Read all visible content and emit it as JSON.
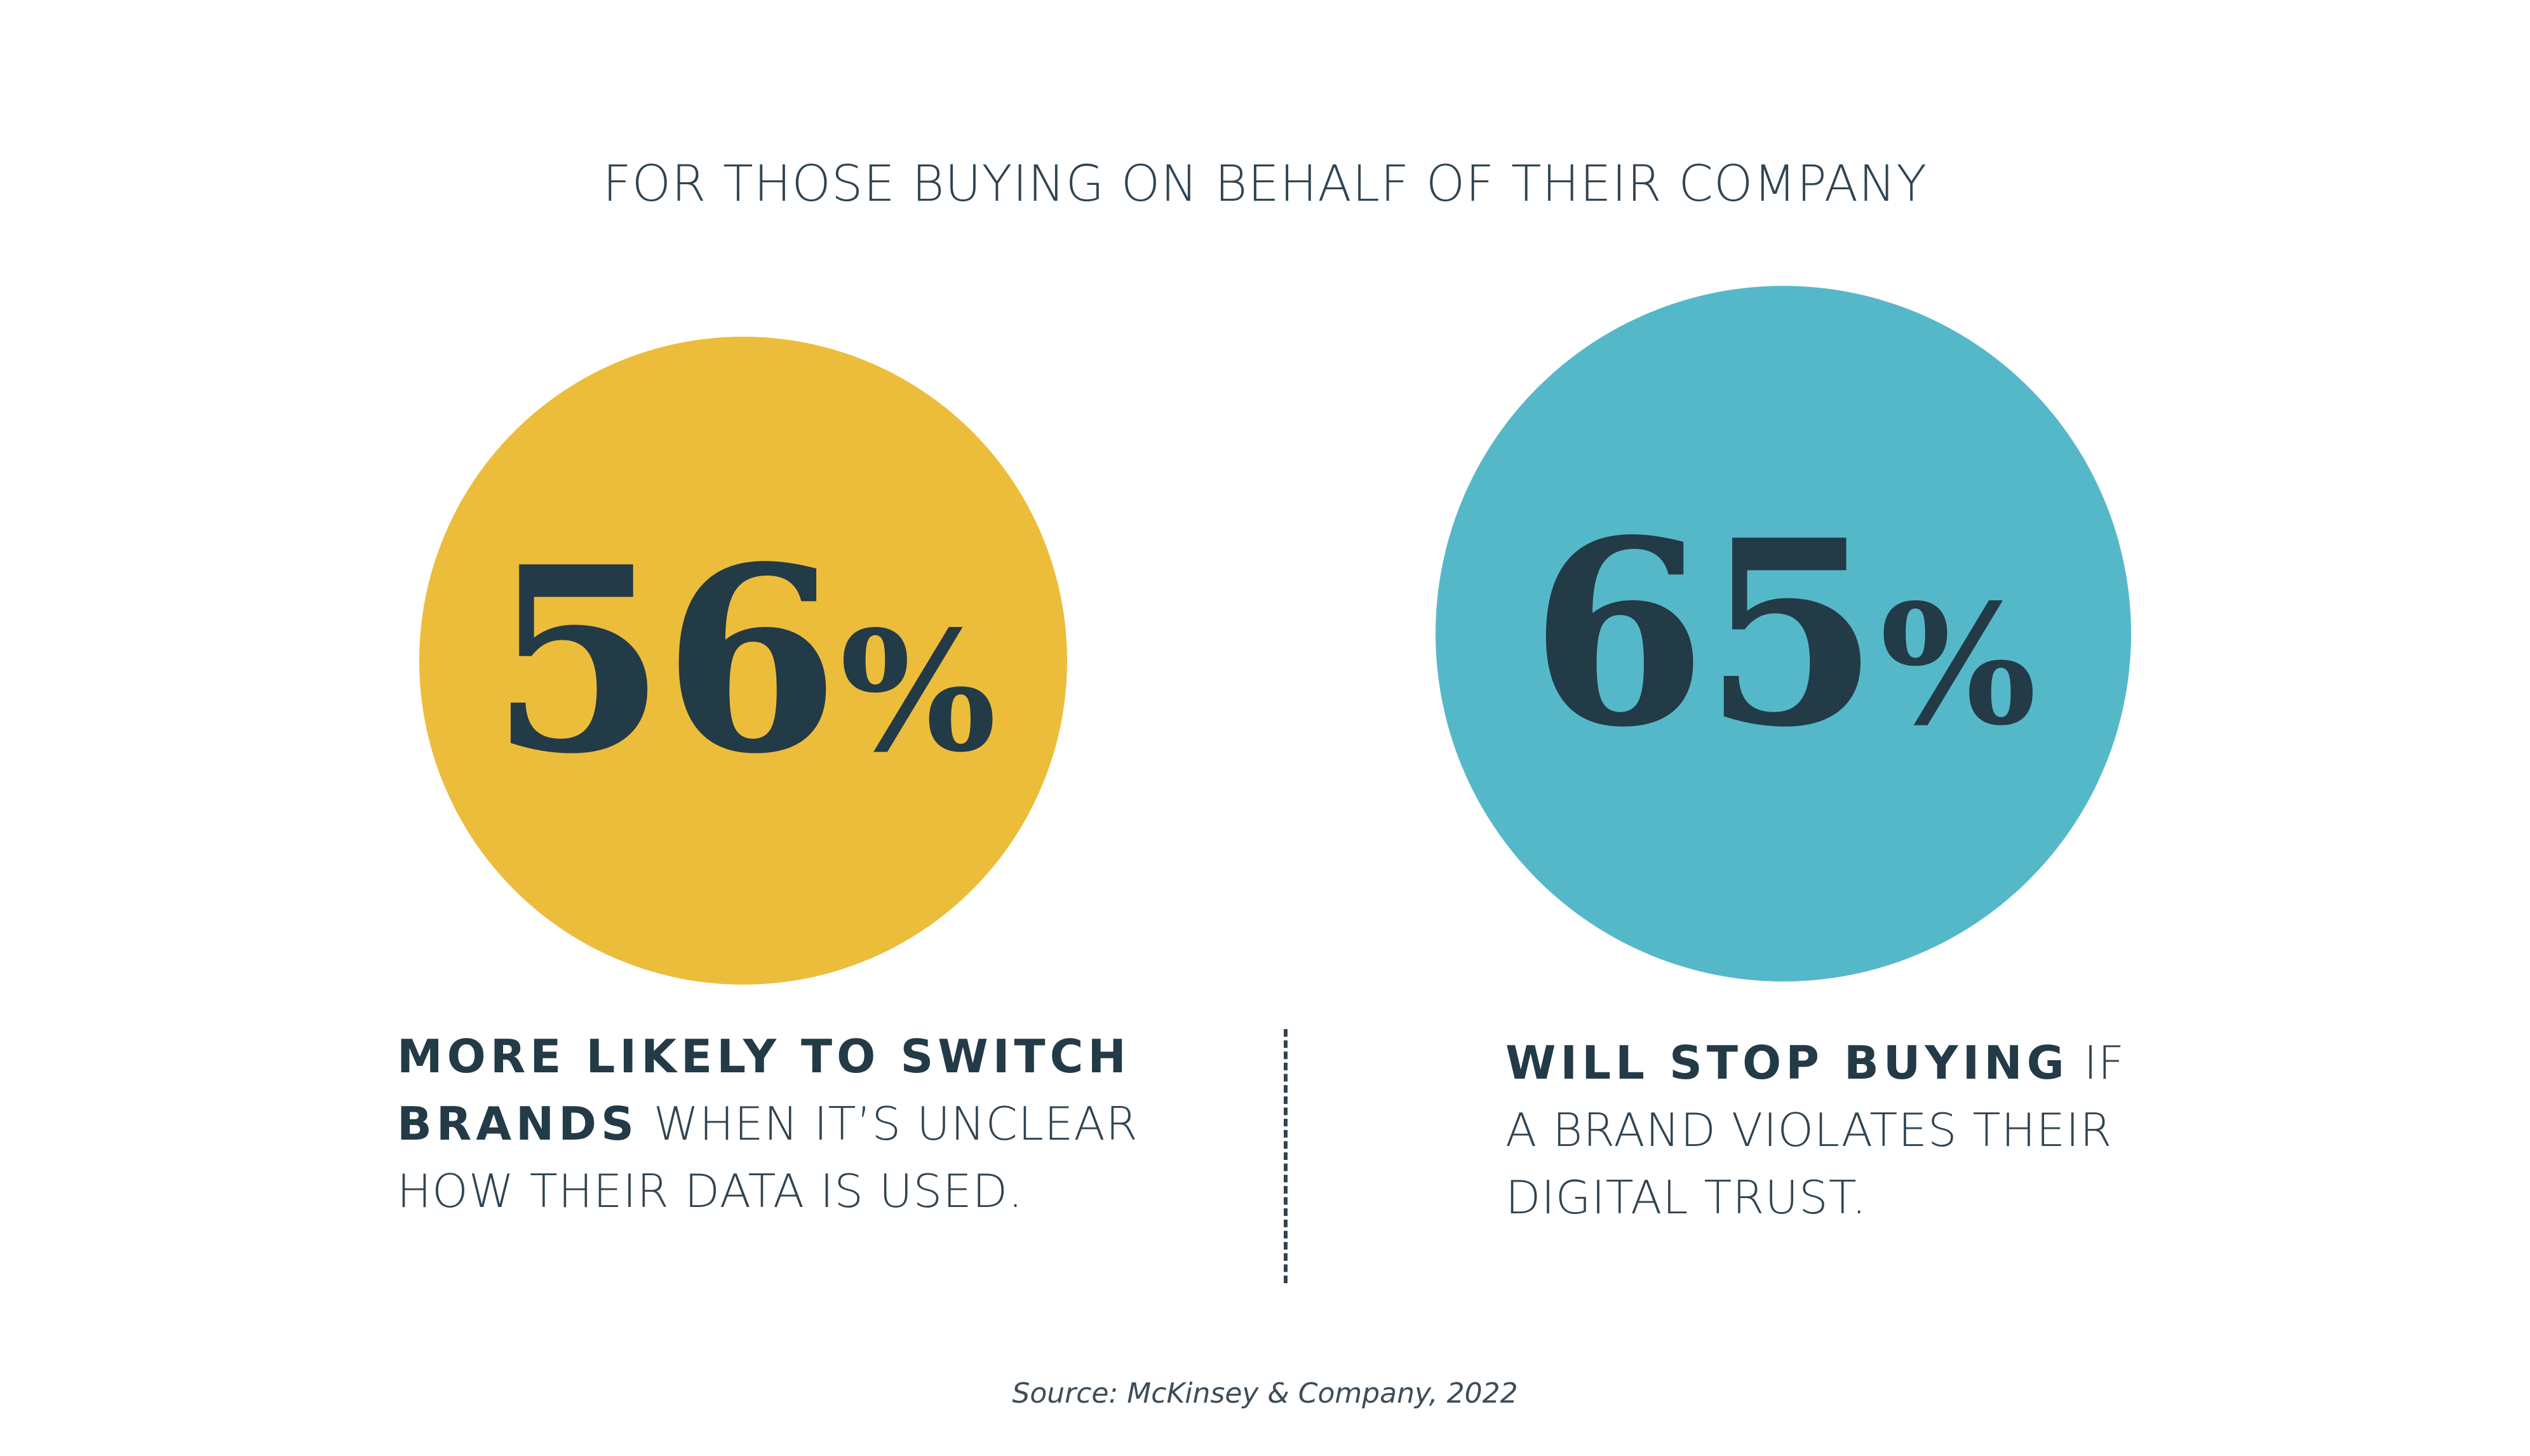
{
  "heading": "FOR THOSE BUYING ON BEHALF OF THEIR COMPANY",
  "colors": {
    "yellow_circle": "#ecbd3b",
    "teal_circle": "#55b8c9",
    "text_dark": "#233a47",
    "background": "#ffffff"
  },
  "stats": [
    {
      "number": "56",
      "percent_sign": "%",
      "desc_bold_line1": "MORE LIKELY TO SWITCH",
      "desc_bold_line2": "BRANDS",
      "desc_rest_line2": " WHEN IT’S UNCLEAR",
      "desc_line3": "HOW THEIR DATA IS USED."
    },
    {
      "number": "65",
      "percent_sign": "%",
      "desc_bold_line1": "WILL STOP BUYING",
      "desc_rest_line1": " IF",
      "desc_line2": "A BRAND VIOLATES THEIR",
      "desc_line3": "DIGITAL TRUST."
    }
  ],
  "source": "Source: McKinsey & Company, 2022"
}
